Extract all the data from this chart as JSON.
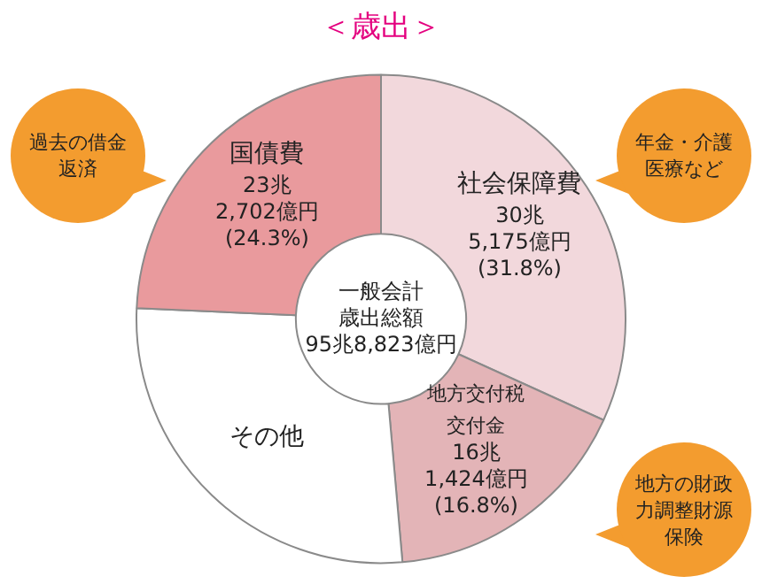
{
  "chart_data": {
    "type": "donut",
    "title": "＜歳出＞",
    "categories": [
      "社会保障費",
      "地方交付税交付金",
      "その他",
      "国債費"
    ],
    "values": [
      31.8,
      16.8,
      27.1,
      24.3
    ],
    "colors": [
      "#f2d8dc",
      "#e3b4b7",
      "#ffffff",
      "#e99a9d"
    ],
    "value_labels": [
      "30兆 5,175億円 (31.8%)",
      "16兆 1,424億円 (16.8%)",
      null,
      "23兆 2,702億円 (24.3%)"
    ],
    "annotations": [
      "一般会計歳出総額95兆8,823億円",
      "年金・介護医療など",
      "地方の財政力調整財源保険",
      "過去の借金返済"
    ],
    "legend": false
  }
}
